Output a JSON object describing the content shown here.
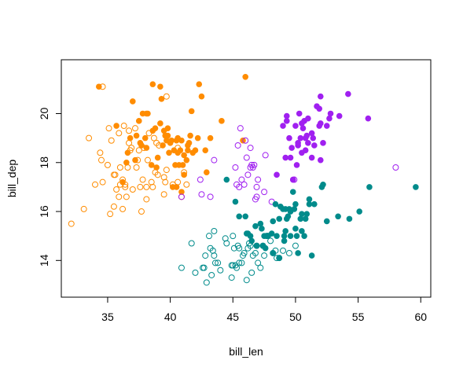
{
  "chart_data": {
    "type": "scatter",
    "xlabel": "bill_len",
    "ylabel": "bill_dep",
    "xlim": [
      31.3,
      60.8
    ],
    "ylim": [
      12.5,
      22.2
    ],
    "xticks": [
      35,
      40,
      45,
      50,
      55,
      60
    ],
    "yticks": [
      14,
      16,
      18,
      20
    ],
    "grid": false,
    "legend": "none",
    "series": [
      {
        "color": "#ff8c00",
        "marker": "filled",
        "points": [
          [
            34.3,
            21.1
          ],
          [
            35.7,
            19.5
          ],
          [
            36.6,
            18.4
          ],
          [
            36.8,
            19.0
          ],
          [
            37.0,
            20.5
          ],
          [
            37.3,
            19.1
          ],
          [
            37.5,
            19.7
          ],
          [
            37.6,
            18.8
          ],
          [
            37.8,
            20.0
          ],
          [
            38.0,
            19.0
          ],
          [
            38.1,
            20.0
          ],
          [
            38.2,
            20.0
          ],
          [
            38.6,
            21.2
          ],
          [
            38.6,
            19.3
          ],
          [
            38.8,
            19.4
          ],
          [
            38.9,
            17.8
          ],
          [
            39.0,
            18.2
          ],
          [
            39.2,
            21.1
          ],
          [
            39.3,
            20.6
          ],
          [
            39.5,
            19.3
          ],
          [
            39.6,
            19.1
          ],
          [
            39.8,
            19.1
          ],
          [
            39.9,
            18.4
          ],
          [
            40.0,
            18.8
          ],
          [
            40.3,
            18.5
          ],
          [
            40.4,
            17.9
          ],
          [
            40.5,
            18.9
          ],
          [
            40.6,
            19.0
          ],
          [
            40.6,
            18.4
          ],
          [
            40.7,
            17.9
          ],
          [
            40.8,
            18.5
          ],
          [
            40.9,
            18.9
          ],
          [
            41.0,
            17.9
          ],
          [
            41.1,
            18.3
          ],
          [
            41.3,
            18.1
          ],
          [
            41.4,
            18.7
          ],
          [
            41.5,
            18.8
          ],
          [
            41.6,
            19.1
          ],
          [
            41.8,
            18.4
          ],
          [
            42.0,
            18.5
          ],
          [
            42.2,
            19.0
          ],
          [
            42.3,
            21.2
          ],
          [
            42.5,
            20.7
          ],
          [
            42.9,
            17.6
          ],
          [
            43.2,
            19.0
          ],
          [
            44.1,
            19.7
          ],
          [
            45.8,
            18.9
          ],
          [
            46.0,
            21.5
          ],
          [
            39.2,
            19.6
          ],
          [
            40.2,
            17.0
          ],
          [
            40.9,
            16.8
          ],
          [
            41.1,
            17.5
          ],
          [
            38.1,
            18.6
          ],
          [
            39.7,
            18.9
          ],
          [
            42.8,
            18.5
          ],
          [
            36.2,
            17.2
          ],
          [
            37.2,
            18.1
          ],
          [
            39.8,
            19.4
          ],
          [
            40.1,
            18.9
          ],
          [
            38.5,
            17.9
          ],
          [
            40.5,
            17.0
          ],
          [
            41.4,
            18.5
          ],
          [
            36.5,
            18.0
          ],
          [
            37.7,
            18.7
          ],
          [
            39.4,
            18.7
          ],
          [
            41.7,
            20.1
          ]
        ]
      },
      {
        "color": "#ff8c00",
        "marker": "open",
        "points": [
          [
            32.1,
            15.5
          ],
          [
            33.1,
            16.1
          ],
          [
            33.5,
            19.0
          ],
          [
            34.0,
            17.1
          ],
          [
            34.4,
            18.4
          ],
          [
            34.5,
            18.1
          ],
          [
            34.6,
            17.2
          ],
          [
            34.6,
            21.1
          ],
          [
            35.0,
            17.9
          ],
          [
            35.1,
            19.4
          ],
          [
            35.2,
            15.9
          ],
          [
            35.3,
            18.9
          ],
          [
            35.5,
            16.2
          ],
          [
            35.5,
            17.5
          ],
          [
            35.6,
            17.5
          ],
          [
            35.7,
            16.9
          ],
          [
            35.9,
            19.2
          ],
          [
            35.9,
            16.6
          ],
          [
            36.0,
            17.1
          ],
          [
            36.0,
            17.8
          ],
          [
            36.2,
            16.1
          ],
          [
            36.2,
            17.3
          ],
          [
            36.3,
            19.5
          ],
          [
            36.4,
            17.0
          ],
          [
            36.4,
            17.1
          ],
          [
            36.5,
            16.6
          ],
          [
            36.6,
            17.8
          ],
          [
            36.7,
            18.8
          ],
          [
            36.7,
            19.3
          ],
          [
            36.8,
            18.5
          ],
          [
            36.9,
            18.6
          ],
          [
            37.0,
            16.9
          ],
          [
            37.2,
            19.4
          ],
          [
            37.3,
            17.8
          ],
          [
            37.4,
            18.1
          ],
          [
            37.5,
            18.5
          ],
          [
            37.6,
            17.0
          ],
          [
            37.7,
            16.0
          ],
          [
            37.8,
            17.3
          ],
          [
            37.9,
            18.6
          ],
          [
            38.1,
            17.0
          ],
          [
            38.1,
            16.5
          ],
          [
            38.2,
            18.1
          ],
          [
            38.3,
            19.2
          ],
          [
            38.5,
            17.2
          ],
          [
            38.6,
            17.0
          ],
          [
            38.7,
            19.0
          ],
          [
            38.8,
            17.6
          ],
          [
            38.9,
            18.8
          ],
          [
            39.0,
            17.5
          ],
          [
            39.1,
            18.7
          ],
          [
            39.5,
            16.7
          ],
          [
            39.5,
            17.4
          ],
          [
            39.6,
            17.2
          ],
          [
            39.7,
            17.7
          ],
          [
            39.7,
            20.7
          ],
          [
            40.2,
            17.1
          ],
          [
            40.6,
            17.2
          ],
          [
            40.6,
            18.6
          ],
          [
            40.9,
            16.6
          ],
          [
            41.1,
            17.6
          ],
          [
            41.3,
            17.1
          ]
        ]
      },
      {
        "color": "#a020f0",
        "marker": "filled",
        "points": [
          [
            49.0,
            19.5
          ],
          [
            49.2,
            18.2
          ],
          [
            49.3,
            19.9
          ],
          [
            49.5,
            19.0
          ],
          [
            49.6,
            18.2
          ],
          [
            49.7,
            18.6
          ],
          [
            49.8,
            17.3
          ],
          [
            50.0,
            19.5
          ],
          [
            50.1,
            17.9
          ],
          [
            50.2,
            18.7
          ],
          [
            50.3,
            20.0
          ],
          [
            50.4,
            19.0
          ],
          [
            50.5,
            19.6
          ],
          [
            50.6,
            19.4
          ],
          [
            50.7,
            19.7
          ],
          [
            50.8,
            19.0
          ],
          [
            50.8,
            18.5
          ],
          [
            50.9,
            19.1
          ],
          [
            51.0,
            18.8
          ],
          [
            51.3,
            19.2
          ],
          [
            51.3,
            18.2
          ],
          [
            51.4,
            19.0
          ],
          [
            51.5,
            18.7
          ],
          [
            51.7,
            20.3
          ],
          [
            51.9,
            19.5
          ],
          [
            52.0,
            20.7
          ],
          [
            52.0,
            18.1
          ],
          [
            52.2,
            18.8
          ],
          [
            52.5,
            19.5
          ],
          [
            52.7,
            19.8
          ],
          [
            52.8,
            20.0
          ],
          [
            53.5,
            19.9
          ],
          [
            54.2,
            20.8
          ],
          [
            55.8,
            19.8
          ],
          [
            48.5,
            17.5
          ],
          [
            49.8,
            17.3
          ],
          [
            50.5,
            18.4
          ],
          [
            51.0,
            19.8
          ],
          [
            51.9,
            20.2
          ],
          [
            52.0,
            19.6
          ],
          [
            49.3,
            19.7
          ],
          [
            50.2,
            18.8
          ]
        ]
      },
      {
        "color": "#a020f0",
        "marker": "open",
        "points": [
          [
            40.9,
            16.6
          ],
          [
            42.4,
            17.3
          ],
          [
            42.5,
            16.7
          ],
          [
            43.2,
            16.6
          ],
          [
            43.5,
            18.1
          ],
          [
            45.2,
            17.8
          ],
          [
            45.4,
            18.7
          ],
          [
            45.5,
            17.0
          ],
          [
            45.6,
            19.4
          ],
          [
            45.7,
            17.3
          ],
          [
            45.9,
            17.1
          ],
          [
            46.0,
            18.9
          ],
          [
            46.1,
            18.2
          ],
          [
            46.2,
            17.5
          ],
          [
            46.4,
            18.6
          ],
          [
            46.4,
            17.8
          ],
          [
            46.5,
            17.9
          ],
          [
            46.6,
            17.8
          ],
          [
            46.7,
            17.9
          ],
          [
            46.8,
            16.5
          ],
          [
            46.9,
            16.6
          ],
          [
            47.0,
            17.3
          ],
          [
            47.5,
            16.8
          ],
          [
            47.6,
            18.3
          ],
          [
            48.1,
            16.4
          ],
          [
            49.9,
            17.3
          ],
          [
            58.0,
            17.8
          ],
          [
            46.9,
            17.0
          ],
          [
            45.3,
            17.1
          ]
        ]
      },
      {
        "color": "#008b8b",
        "marker": "filled",
        "points": [
          [
            44.5,
            17.3
          ],
          [
            45.2,
            16.4
          ],
          [
            45.5,
            15.8
          ],
          [
            46.0,
            15.8
          ],
          [
            46.2,
            15.1
          ],
          [
            46.4,
            15.0
          ],
          [
            46.5,
            14.8
          ],
          [
            46.8,
            15.4
          ],
          [
            46.9,
            14.6
          ],
          [
            47.2,
            15.5
          ],
          [
            47.3,
            15.3
          ],
          [
            47.5,
            15.0
          ],
          [
            47.6,
            14.5
          ],
          [
            47.8,
            15.0
          ],
          [
            48.1,
            15.1
          ],
          [
            48.2,
            14.3
          ],
          [
            48.4,
            16.3
          ],
          [
            48.5,
            15.0
          ],
          [
            48.7,
            15.7
          ],
          [
            48.8,
            16.2
          ],
          [
            49.0,
            16.1
          ],
          [
            49.1,
            15.0
          ],
          [
            49.2,
            15.2
          ],
          [
            49.3,
            15.7
          ],
          [
            49.4,
            15.8
          ],
          [
            49.5,
            16.1
          ],
          [
            49.6,
            15.0
          ],
          [
            49.8,
            16.8
          ],
          [
            49.9,
            16.1
          ],
          [
            50.0,
            15.3
          ],
          [
            50.0,
            16.3
          ],
          [
            50.1,
            15.0
          ],
          [
            50.2,
            14.3
          ],
          [
            50.4,
            15.7
          ],
          [
            50.5,
            15.9
          ],
          [
            50.7,
            15.0
          ],
          [
            50.8,
            15.7
          ],
          [
            51.1,
            16.3
          ],
          [
            51.3,
            14.2
          ],
          [
            51.5,
            16.3
          ],
          [
            52.1,
            17.0
          ],
          [
            52.2,
            17.1
          ],
          [
            52.5,
            15.6
          ],
          [
            53.4,
            15.8
          ],
          [
            54.3,
            15.7
          ],
          [
            55.1,
            16.0
          ],
          [
            55.9,
            17.0
          ],
          [
            59.6,
            17.0
          ],
          [
            46.1,
            15.1
          ],
          [
            47.4,
            14.6
          ],
          [
            48.7,
            14.1
          ],
          [
            49.1,
            14.8
          ],
          [
            49.6,
            16.0
          ],
          [
            50.5,
            15.2
          ],
          [
            51.1,
            16.5
          ],
          [
            48.2,
            15.6
          ],
          [
            49.2,
            16.1
          ],
          [
            50.9,
            15.9
          ]
        ]
      },
      {
        "color": "#008b8b",
        "marker": "open",
        "points": [
          [
            40.9,
            13.7
          ],
          [
            41.7,
            14.7
          ],
          [
            42.0,
            13.5
          ],
          [
            42.6,
            13.7
          ],
          [
            42.7,
            13.7
          ],
          [
            42.8,
            14.2
          ],
          [
            42.9,
            13.1
          ],
          [
            43.2,
            14.5
          ],
          [
            43.3,
            13.4
          ],
          [
            43.4,
            14.4
          ],
          [
            43.5,
            14.2
          ],
          [
            43.5,
            15.2
          ],
          [
            43.6,
            13.9
          ],
          [
            43.8,
            13.9
          ],
          [
            44.0,
            13.6
          ],
          [
            44.4,
            14.9
          ],
          [
            44.5,
            14.7
          ],
          [
            44.9,
            13.8
          ],
          [
            45.0,
            13.8
          ],
          [
            45.1,
            14.5
          ],
          [
            45.2,
            13.8
          ],
          [
            45.3,
            13.7
          ],
          [
            45.4,
            14.6
          ],
          [
            45.5,
            13.9
          ],
          [
            45.5,
            14.5
          ],
          [
            45.7,
            13.9
          ],
          [
            45.8,
            14.2
          ],
          [
            45.9,
            14.3
          ],
          [
            46.1,
            13.2
          ],
          [
            46.2,
            14.5
          ],
          [
            46.4,
            14.6
          ],
          [
            46.5,
            13.5
          ],
          [
            46.6,
            14.2
          ],
          [
            46.8,
            14.3
          ],
          [
            46.9,
            14.6
          ],
          [
            47.0,
            13.9
          ],
          [
            47.2,
            13.7
          ],
          [
            47.4,
            14.6
          ],
          [
            47.5,
            14.2
          ],
          [
            47.7,
            15.0
          ],
          [
            47.8,
            15.0
          ],
          [
            48.0,
            14.8
          ],
          [
            48.2,
            14.3
          ],
          [
            48.4,
            14.4
          ],
          [
            48.5,
            14.1
          ],
          [
            48.7,
            14.1
          ],
          [
            49.0,
            14.4
          ],
          [
            49.5,
            14.3
          ],
          [
            50.0,
            14.6
          ],
          [
            46.3,
            14.7
          ],
          [
            45.0,
            15.0
          ],
          [
            44.9,
            13.3
          ],
          [
            43.1,
            15.0
          ]
        ]
      }
    ]
  }
}
